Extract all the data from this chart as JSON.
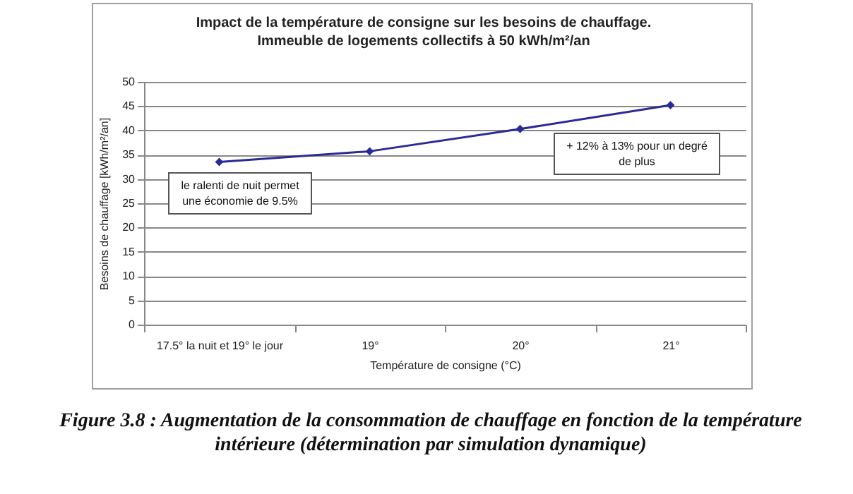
{
  "chart_data": {
    "type": "line",
    "title": "Impact de la température de consigne sur les besoins de chauffage. Immeuble de logements collectifs à 50 kWh/m²/an",
    "xlabel": "Température de consigne (°C)",
    "ylabel": "Besoins de chauffage [kWh/m²/an]",
    "categories": [
      "17.5° la nuit et 19° le jour",
      "19°",
      "20°",
      "21°"
    ],
    "series": [
      {
        "color": "#2b2b96",
        "values": [
          33.5,
          35.7,
          40.3,
          45.2
        ]
      }
    ],
    "ylim": [
      0,
      50
    ],
    "yticks": [
      0,
      5,
      10,
      15,
      20,
      25,
      30,
      35,
      40,
      45,
      50
    ],
    "grid": "y",
    "marker": "diamond",
    "line_style": "solid",
    "legend": false,
    "annotations": [
      "le ralenti de nuit permet une économie de 9.5%",
      "+ 12% à 13% pour un degré de plus",
      "Figure 3.8 : Augmentation de la consommation de chauffage en fonction de la température intérieure (détermination par simulation dynamique)"
    ]
  }
}
